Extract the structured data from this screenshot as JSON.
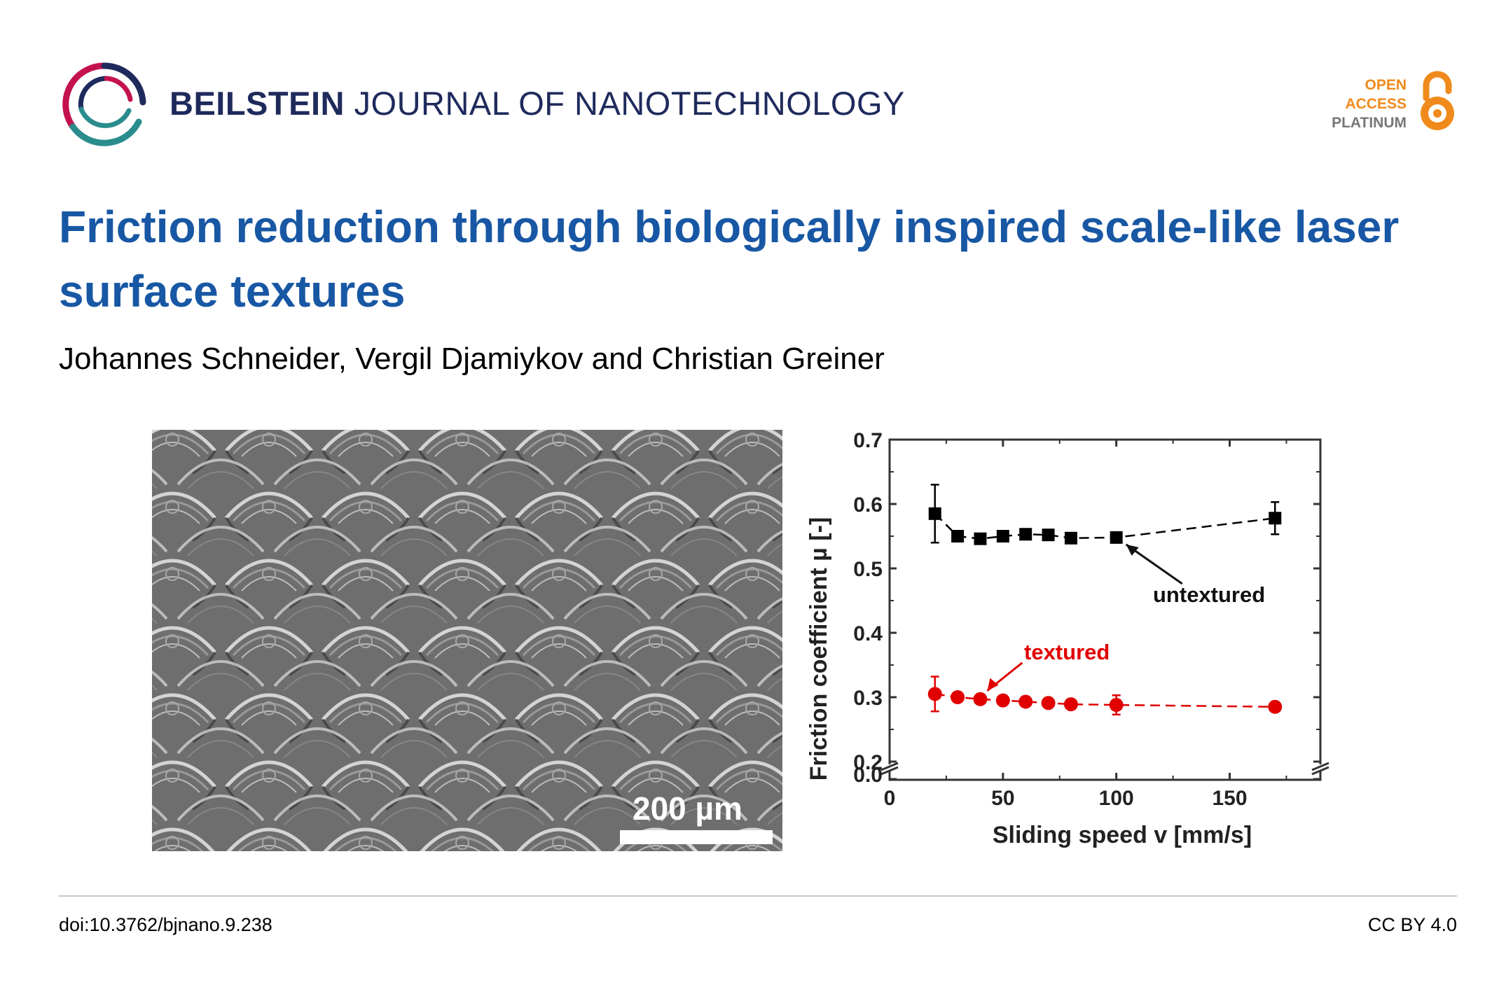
{
  "header": {
    "journal_bold": "BEILSTEIN",
    "journal_rest": " JOURNAL OF NANOTECHNOLOGY",
    "badge": {
      "line1": "OPEN",
      "line2": "ACCESS",
      "line3": "PLATINUM"
    }
  },
  "article": {
    "title": "Friction reduction through biologically inspired scale-like laser surface textures",
    "authors": "Johannes Schneider, Vergil Djamiykov and Christian Greiner"
  },
  "micrograph": {
    "scale_label": "200 µm"
  },
  "chart_data": {
    "type": "scatter",
    "xlabel": "Sliding speed v [mm/s]",
    "ylabel": "Friction coefficient µ [-]",
    "xlim": [
      0,
      190
    ],
    "ylim": [
      0.0,
      0.7
    ],
    "axis_break": [
      0.0,
      0.2
    ],
    "xticks": [
      0,
      50,
      100,
      150
    ],
    "yticks": [
      0.0,
      0.2,
      0.3,
      0.4,
      0.5,
      0.6,
      0.7
    ],
    "series": [
      {
        "name": "untextured",
        "color": "#000000",
        "marker": "square",
        "x": [
          20,
          30,
          40,
          50,
          60,
          70,
          80,
          100,
          170
        ],
        "y": [
          0.585,
          0.55,
          0.546,
          0.55,
          0.553,
          0.552,
          0.547,
          0.548,
          0.578
        ],
        "err": [
          0.045,
          0.006,
          0.005,
          0.005,
          0.005,
          0.005,
          0.005,
          0.007,
          0.025
        ]
      },
      {
        "name": "textured",
        "color": "#e00000",
        "marker": "circle",
        "x": [
          20,
          30,
          40,
          50,
          60,
          70,
          80,
          100,
          170
        ],
        "y": [
          0.305,
          0.3,
          0.297,
          0.295,
          0.293,
          0.291,
          0.289,
          0.288,
          0.285
        ],
        "err": [
          0.027,
          0.004,
          0.004,
          0.006,
          0.004,
          0.004,
          0.005,
          0.015,
          0.004
        ]
      }
    ],
    "annotations": [
      {
        "text": "untextured",
        "color": "#000000",
        "points_to": [
          100,
          0.548
        ]
      },
      {
        "text": "textured",
        "color": "#e00000",
        "points_to": [
          40,
          0.297
        ]
      }
    ],
    "grid": false
  },
  "footer": {
    "doi": "doi:10.3762/bjnano.9.238",
    "license": "CC BY 4.0"
  },
  "colors": {
    "title": "#1857a4",
    "journal": "#1f2a5c",
    "open_access": "#f08a1c",
    "logo_magenta": "#c4124f",
    "logo_teal": "#2a8c8c",
    "logo_navy": "#1f2a5c"
  }
}
